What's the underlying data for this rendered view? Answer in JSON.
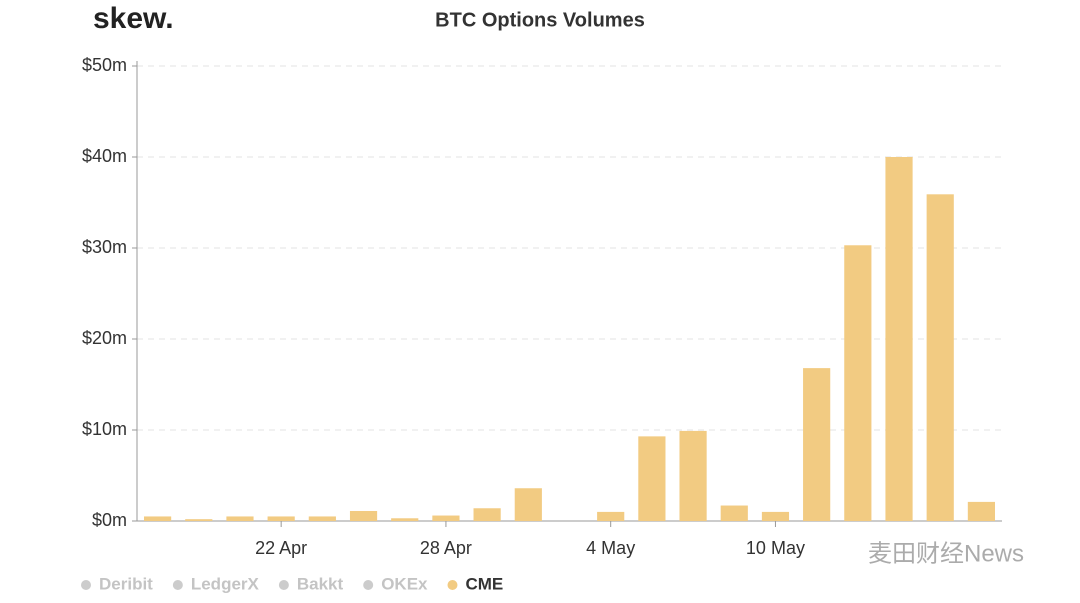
{
  "chart_data": {
    "type": "bar",
    "logo": "skew.",
    "title": "BTC Options Volumes",
    "categories": [
      null,
      null,
      null,
      "22 Apr",
      null,
      null,
      null,
      "28 Apr",
      null,
      null,
      null,
      "4 May",
      null,
      null,
      null,
      "10 May",
      null,
      null,
      null,
      null,
      null
    ],
    "series": [
      {
        "name": "CME",
        "color": "#f2cb82",
        "values": [
          0.5,
          0.2,
          0.5,
          0.5,
          0.5,
          1.1,
          0.3,
          0.6,
          1.4,
          3.6,
          0,
          1.0,
          9.3,
          9.9,
          1.7,
          1.0,
          16.8,
          30.3,
          40.0,
          35.9,
          2.1
        ]
      }
    ],
    "legend": [
      {
        "name": "Deribit",
        "color": "#cccccc"
      },
      {
        "name": "LedgerX",
        "color": "#cccccc"
      },
      {
        "name": "Bakkt",
        "color": "#cccccc"
      },
      {
        "name": "OKEx",
        "color": "#cccccc"
      },
      {
        "name": "CME",
        "color": "#f2cb82"
      }
    ],
    "ylim": [
      0,
      50
    ],
    "yticks": [
      {
        "value": 0,
        "label": "$0m"
      },
      {
        "value": 10,
        "label": "$10m"
      },
      {
        "value": 20,
        "label": "$20m"
      },
      {
        "value": 30,
        "label": "$30m"
      },
      {
        "value": 40,
        "label": "$40m"
      },
      {
        "value": 50,
        "label": "$50m"
      }
    ],
    "grid": true,
    "watermark": "麦田财经News"
  }
}
